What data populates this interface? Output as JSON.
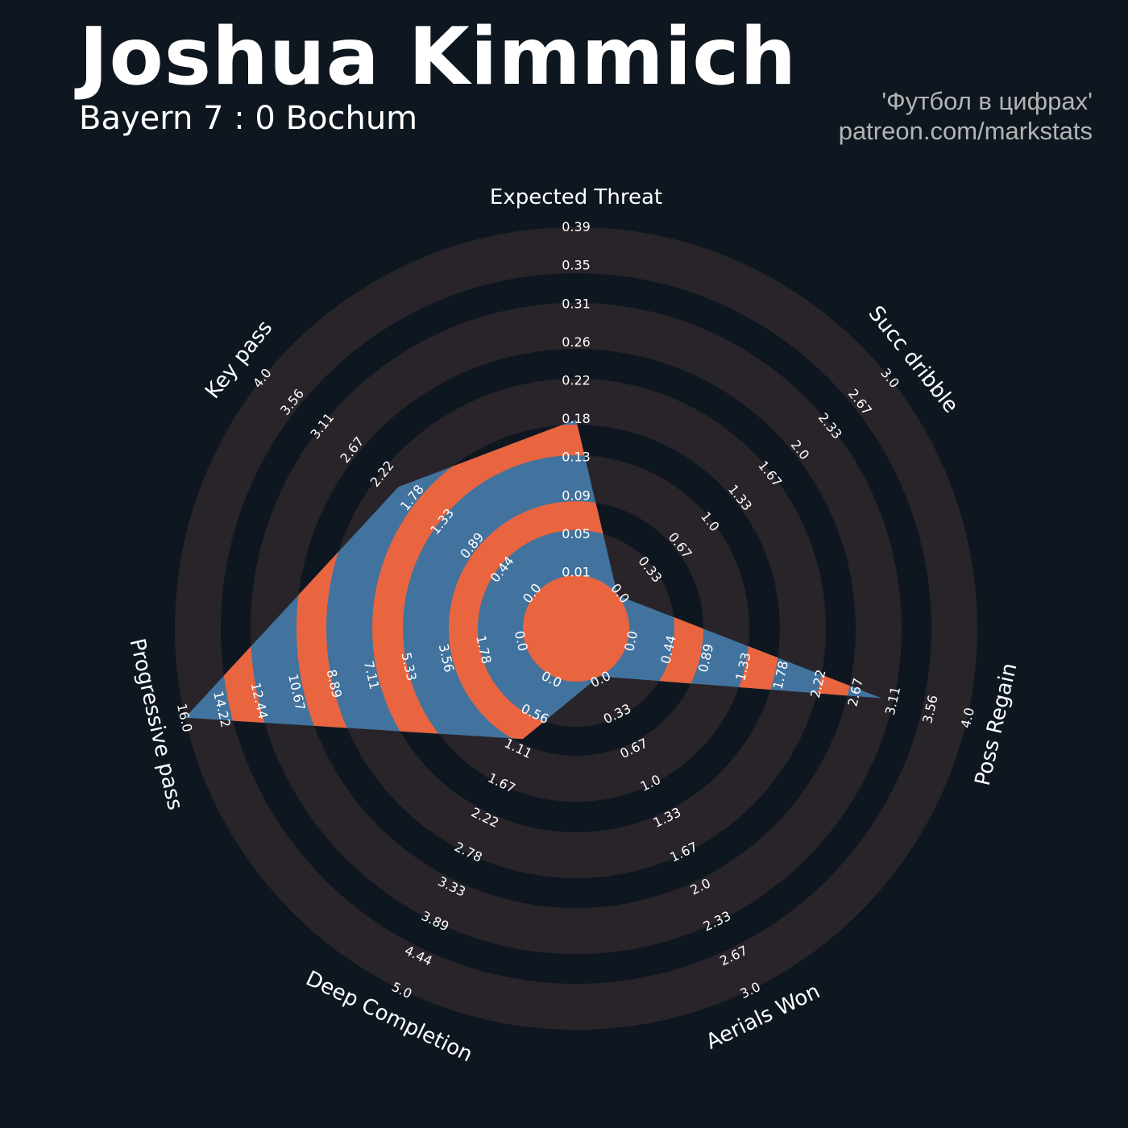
{
  "header": {
    "title": "Joshua Kimmich",
    "subtitle": "Bayern 7 : 0 Bochum",
    "credit_line1": "'Футбол в цифрах'",
    "credit_line2": "patreon.com/markstats"
  },
  "colors": {
    "background": "#0e1720",
    "ring_dark": "#28242a",
    "radar_fill": "#41739e",
    "radar_alt": "#e86540",
    "text": "#ffffff"
  },
  "chart_data": {
    "type": "radar",
    "params": [
      "Expected Threat",
      "Succ dribble",
      "Poss Regain",
      "Aerials Won",
      "Deep Completion",
      "Progressive pass",
      "Key pass"
    ],
    "min_range": [
      0.01,
      0,
      0,
      0,
      0,
      0,
      0
    ],
    "max_range": [
      0.39,
      3,
      4,
      3,
      5,
      16,
      4
    ],
    "values": [
      0.18,
      0,
      3.0,
      0,
      1.0,
      16.0,
      2.0
    ],
    "tick_labels": [
      [
        "0.01",
        "0.05",
        "0.09",
        "0.13",
        "0.18",
        "0.22",
        "0.26",
        "0.31",
        "0.35",
        "0.39"
      ],
      [
        "0.0",
        "0.33",
        "0.67",
        "1.0",
        "1.33",
        "1.67",
        "2.0",
        "2.33",
        "2.67",
        "3.0"
      ],
      [
        "0.0",
        "0.44",
        "0.89",
        "1.33",
        "1.78",
        "2.22",
        "2.67",
        "3.11",
        "3.56",
        "4.0"
      ],
      [
        "0.0",
        "0.33",
        "0.67",
        "1.0",
        "1.33",
        "1.67",
        "2.0",
        "2.33",
        "2.67",
        "3.0"
      ],
      [
        "0.0",
        "0.56",
        "1.11",
        "1.67",
        "2.22",
        "2.78",
        "3.33",
        "3.89",
        "4.44",
        "5.0"
      ],
      [
        "0.0",
        "1.78",
        "3.56",
        "5.33",
        "7.11",
        "8.89",
        "10.67",
        "12.44",
        "14.22",
        "16.0"
      ],
      [
        "0.0",
        "0.44",
        "0.89",
        "1.33",
        "1.78",
        "2.22",
        "2.67",
        "3.11",
        "3.56",
        "4.0"
      ]
    ]
  }
}
